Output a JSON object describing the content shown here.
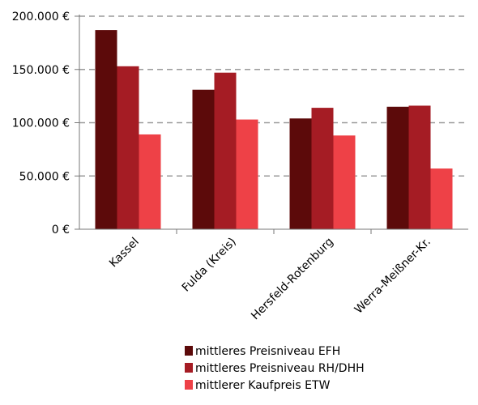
{
  "chart_data": {
    "type": "bar",
    "categories": [
      "Kassel",
      "Fulda (Kreis)",
      "Hersfeld-Rotenburg",
      "Werra-Meißner-Kr."
    ],
    "series": [
      {
        "name": "mittleres Preisniveau EFH",
        "values": [
          187000,
          131000,
          104000,
          115000
        ],
        "color": "#5c0a0a"
      },
      {
        "name": "mittleres Preisniveau RH/DHH",
        "values": [
          153000,
          147000,
          114000,
          116000
        ],
        "color": "#a51c24"
      },
      {
        "name": "mittlerer Kaufpreis ETW",
        "values": [
          89000,
          103000,
          88000,
          57000
        ],
        "color": "#ee4147"
      }
    ],
    "y_ticks": [
      "0 €",
      "50.000 €",
      "100.000 €",
      "150.000 €",
      "200.000 €"
    ],
    "ylim": [
      0,
      200000
    ],
    "grid": true,
    "legend_position": "bottom"
  }
}
